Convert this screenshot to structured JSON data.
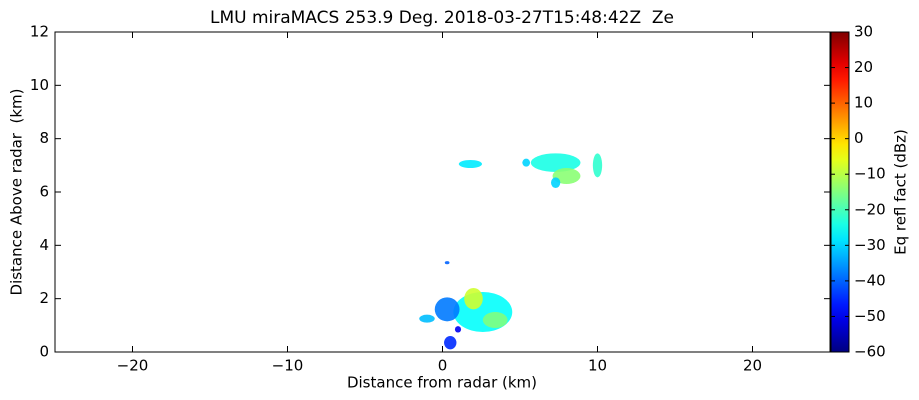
{
  "chart_data": {
    "type": "radar-section",
    "title": "LMU miraMACS 253.9 Deg. 2018-03-27T15:48:42Z  Ze",
    "xlabel": "Distance from radar (km)",
    "ylabel": "Distance Above radar  (km)",
    "xlim": [
      -25,
      25
    ],
    "ylim": [
      0,
      12
    ],
    "xticks": [
      {
        "value": -20,
        "label": "−20"
      },
      {
        "value": -10,
        "label": "−10"
      },
      0,
      10,
      20
    ],
    "yticks": [
      0,
      2,
      4,
      6,
      8,
      10,
      12
    ],
    "colorbar": {
      "label": "Eq refl fact (dBz)",
      "colormap": "jet",
      "lim": [
        -60,
        30
      ],
      "ticks": [
        {
          "value": -60,
          "label": "−60"
        },
        {
          "value": -50,
          "label": "−50"
        },
        {
          "value": -40,
          "label": "−40"
        },
        {
          "value": -30,
          "label": "−30"
        },
        {
          "value": -20,
          "label": "−20"
        },
        {
          "value": -10,
          "label": "−10"
        },
        0,
        10,
        20,
        30
      ]
    },
    "echoes": [
      {
        "x": 1.8,
        "y": 7.05,
        "rx": 0.75,
        "ry": 0.15,
        "value": -28
      },
      {
        "x": 5.4,
        "y": 7.1,
        "rx": 0.25,
        "ry": 0.15,
        "value": -30
      },
      {
        "x": 7.3,
        "y": 7.1,
        "rx": 1.6,
        "ry": 0.35,
        "value": -24
      },
      {
        "x": 8.0,
        "y": 6.6,
        "rx": 0.9,
        "ry": 0.3,
        "value": -14
      },
      {
        "x": 7.3,
        "y": 6.35,
        "rx": 0.3,
        "ry": 0.2,
        "value": -30
      },
      {
        "x": 10.0,
        "y": 7.0,
        "rx": 0.3,
        "ry": 0.45,
        "value": -22
      },
      {
        "x": 2.6,
        "y": 1.5,
        "rx": 1.9,
        "ry": 0.75,
        "value": -26
      },
      {
        "x": 0.3,
        "y": 1.6,
        "rx": 0.8,
        "ry": 0.45,
        "value": -38
      },
      {
        "x": 2.0,
        "y": 2.0,
        "rx": 0.6,
        "ry": 0.4,
        "value": -8
      },
      {
        "x": 3.4,
        "y": 1.2,
        "rx": 0.8,
        "ry": 0.3,
        "value": -15
      },
      {
        "x": -1.0,
        "y": 1.25,
        "rx": 0.5,
        "ry": 0.15,
        "value": -32
      },
      {
        "x": 0.3,
        "y": 3.35,
        "rx": 0.15,
        "ry": 0.06,
        "value": -40
      },
      {
        "x": 0.5,
        "y": 0.35,
        "rx": 0.4,
        "ry": 0.25,
        "value": -45
      },
      {
        "x": 1.0,
        "y": 0.85,
        "rx": 0.2,
        "ry": 0.12,
        "value": -50
      }
    ]
  }
}
